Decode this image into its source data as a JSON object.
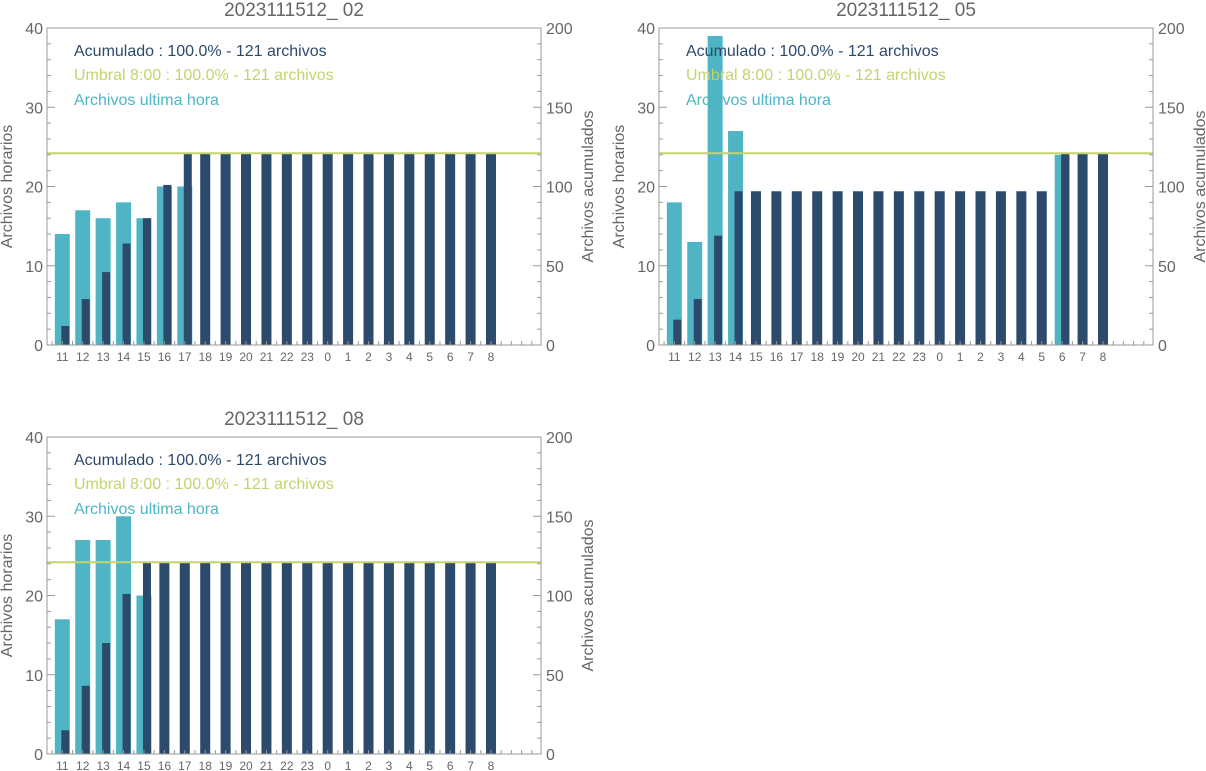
{
  "colors": {
    "hourly": "#4fb5c4",
    "cumulative": "#2c4a6b",
    "threshold": "#c5d36a",
    "axis": "#999999",
    "title": "#666666"
  },
  "legend": {
    "acumulado": "Acumulado : 100.0% - 121 archivos",
    "umbral": "Umbral 8:00 : 100.0% - 121 archivos",
    "ultima_hora": "Archivos ultima hora"
  },
  "chart_data": [
    {
      "type": "bar",
      "title": "2023111512_ 02",
      "categories": [
        "11",
        "12",
        "13",
        "14",
        "15",
        "16",
        "17",
        "18",
        "19",
        "20",
        "21",
        "22",
        "23",
        "0",
        "1",
        "2",
        "3",
        "4",
        "5",
        "6",
        "7",
        "8"
      ],
      "ylabel": "Archivos horarios",
      "y2label": "Archivos acumulados",
      "ylim": [
        0,
        40
      ],
      "y2lim": [
        0,
        200
      ],
      "threshold": 121,
      "series": [
        {
          "name": "Archivos ultima hora",
          "axis": "left",
          "values": [
            14,
            17,
            16,
            18,
            16,
            20,
            20,
            null,
            null,
            null,
            null,
            null,
            null,
            null,
            null,
            null,
            null,
            null,
            null,
            null,
            null,
            null
          ]
        },
        {
          "name": "Acumulado",
          "axis": "right",
          "values": [
            12,
            29,
            46,
            64,
            80,
            101,
            121,
            121,
            121,
            121,
            121,
            121,
            121,
            121,
            121,
            121,
            121,
            121,
            121,
            121,
            121,
            121
          ]
        }
      ]
    },
    {
      "type": "bar",
      "title": "2023111512_ 05",
      "categories": [
        "11",
        "12",
        "13",
        "14",
        "15",
        "16",
        "17",
        "18",
        "19",
        "20",
        "21",
        "22",
        "23",
        "0",
        "1",
        "2",
        "3",
        "4",
        "5",
        "6",
        "7",
        "8"
      ],
      "ylabel": "Archivos horarios",
      "y2label": "Archivos acumulados",
      "ylim": [
        0,
        40
      ],
      "y2lim": [
        0,
        200
      ],
      "threshold": 121,
      "series": [
        {
          "name": "Archivos ultima hora",
          "axis": "left",
          "values": [
            18,
            13,
            39,
            27,
            null,
            null,
            null,
            null,
            null,
            null,
            null,
            null,
            null,
            null,
            null,
            null,
            null,
            null,
            null,
            24,
            null,
            null
          ]
        },
        {
          "name": "Acumulado",
          "axis": "right",
          "values": [
            16,
            29,
            69,
            97,
            97,
            97,
            97,
            97,
            97,
            97,
            97,
            97,
            97,
            97,
            97,
            97,
            97,
            97,
            97,
            121,
            121,
            121
          ]
        }
      ]
    },
    {
      "type": "bar",
      "title": "2023111512_ 08",
      "categories": [
        "11",
        "12",
        "13",
        "14",
        "15",
        "16",
        "17",
        "18",
        "19",
        "20",
        "21",
        "22",
        "23",
        "0",
        "1",
        "2",
        "3",
        "4",
        "5",
        "6",
        "7",
        "8"
      ],
      "ylabel": "Archivos horarios",
      "y2label": "Archivos acumulados",
      "ylim": [
        0,
        40
      ],
      "y2lim": [
        0,
        200
      ],
      "threshold": 121,
      "series": [
        {
          "name": "Archivos ultima hora",
          "axis": "left",
          "values": [
            17,
            27,
            27,
            30,
            20,
            null,
            null,
            null,
            null,
            null,
            null,
            null,
            null,
            null,
            null,
            null,
            null,
            null,
            null,
            null,
            null,
            null
          ]
        },
        {
          "name": "Acumulado",
          "axis": "right",
          "values": [
            15,
            43,
            70,
            101,
            121,
            121,
            121,
            121,
            121,
            121,
            121,
            121,
            121,
            121,
            121,
            121,
            121,
            121,
            121,
            121,
            121,
            121
          ]
        }
      ]
    }
  ]
}
